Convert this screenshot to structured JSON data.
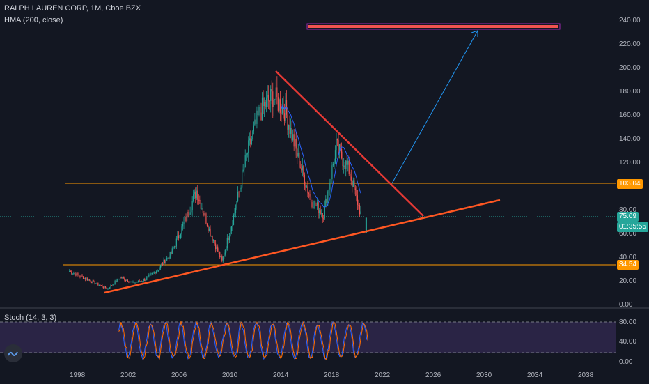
{
  "header": {
    "symbol": "RALPH LAUREN CORP, 1M, Cboe BZX",
    "indicator": "HMA (200, close)"
  },
  "stoch": {
    "label": "Stoch (14, 3, 3)"
  },
  "price_axis": {
    "ticks": [
      "240.00",
      "220.00",
      "200.00",
      "180.00",
      "160.00",
      "140.00",
      "120.00",
      "100.00",
      "80.00",
      "60.00",
      "40.00",
      "20.00",
      "0.00"
    ],
    "tags": {
      "resistance": "103.04",
      "last_price": "75.09",
      "countdown": "01:35:55",
      "support": "34.54"
    }
  },
  "stoch_axis": {
    "ticks": [
      "80.00",
      "40.00",
      "0.00"
    ]
  },
  "time_axis": {
    "ticks": [
      "1998",
      "2002",
      "2006",
      "2010",
      "2014",
      "2018",
      "2022",
      "2026",
      "2030",
      "2034",
      "2038"
    ]
  },
  "colors": {
    "background": "#131722",
    "up": "#26a69a",
    "down": "#ef5350",
    "orange": "#ff9800",
    "trend_orange": "#ff5722",
    "trend_red": "#e53935",
    "arrow_blue": "#2196f3",
    "stoch_k": "#2962ff",
    "stoch_d": "#ff6d00",
    "stoch_band": "#7e57c2",
    "target_box": "#9c27b0"
  },
  "chart_data": {
    "type": "candlestick",
    "price_range": [
      0,
      250
    ],
    "resistance_level": 103.04,
    "support_level": 34.54,
    "last_price": 75.09,
    "target_zone": 235,
    "approx_yearly_path": [
      {
        "x": 1997,
        "y": 30
      },
      {
        "x": 1998,
        "y": 25
      },
      {
        "x": 1999,
        "y": 20
      },
      {
        "x": 2000,
        "y": 15
      },
      {
        "x": 2001,
        "y": 25
      },
      {
        "x": 2002,
        "y": 20
      },
      {
        "x": 2003,
        "y": 23
      },
      {
        "x": 2004,
        "y": 32
      },
      {
        "x": 2005,
        "y": 45
      },
      {
        "x": 2006,
        "y": 70
      },
      {
        "x": 2007,
        "y": 98
      },
      {
        "x": 2008,
        "y": 65
      },
      {
        "x": 2009,
        "y": 38
      },
      {
        "x": 2010,
        "y": 80
      },
      {
        "x": 2011,
        "y": 130
      },
      {
        "x": 2012,
        "y": 165
      },
      {
        "x": 2013,
        "y": 178
      },
      {
        "x": 2014,
        "y": 165
      },
      {
        "x": 2015,
        "y": 125
      },
      {
        "x": 2016,
        "y": 90
      },
      {
        "x": 2017,
        "y": 78
      },
      {
        "x": 2018,
        "y": 135
      },
      {
        "x": 2019,
        "y": 115
      },
      {
        "x": 2020,
        "y": 75
      }
    ]
  }
}
